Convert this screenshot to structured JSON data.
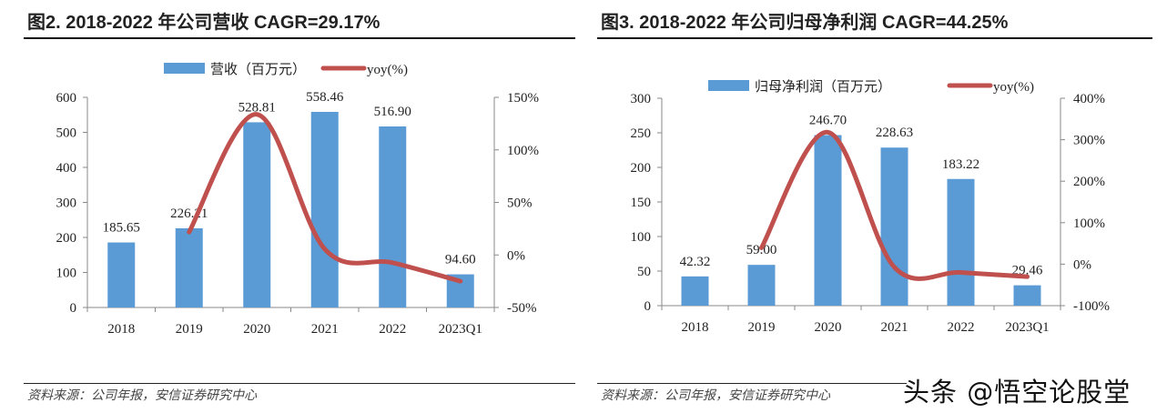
{
  "colors": {
    "bar": "#5b9bd5",
    "line": "#c0504d",
    "axis": "#888888"
  },
  "chart_data": [
    {
      "type": "bar+line",
      "title": "图2. 2018-2022 年公司营收 CAGR=29.17%",
      "categories": [
        "2018",
        "2019",
        "2020",
        "2021",
        "2022",
        "2023Q1"
      ],
      "series": [
        {
          "name": "营收（百万元）",
          "type": "bar",
          "axis": "left",
          "values": [
            185.65,
            226.21,
            528.81,
            558.46,
            516.9,
            94.6
          ],
          "labels": [
            "185.65",
            "226.21",
            "528.81",
            "558.46",
            "516.90",
            "94.60"
          ]
        },
        {
          "name": "yoy(%)",
          "type": "line",
          "axis": "right",
          "values": [
            null,
            21.8,
            133.8,
            5.6,
            -7.4,
            -25
          ]
        }
      ],
      "ylim": [
        0,
        600
      ],
      "yticks": [
        "0",
        "100",
        "200",
        "300",
        "400",
        "500",
        "600"
      ],
      "y2lim": [
        -50,
        150
      ],
      "y2ticks": [
        "-50%",
        "0%",
        "50%",
        "100%",
        "150%"
      ],
      "legend": "top",
      "grid": false,
      "source": "资料来源：公司年报，安信证券研究中心"
    },
    {
      "type": "bar+line",
      "title": "图3. 2018-2022 年公司归母净利润 CAGR=44.25%",
      "categories": [
        "2018",
        "2019",
        "2020",
        "2021",
        "2022",
        "2023Q1"
      ],
      "series": [
        {
          "name": "归母净利润（百万元）",
          "type": "bar",
          "axis": "left",
          "values": [
            42.32,
            59.0,
            246.7,
            228.63,
            183.22,
            29.46
          ],
          "labels": [
            "42.32",
            "59.00",
            "246.70",
            "228.63",
            "183.22",
            "29.46"
          ]
        },
        {
          "name": "yoy(%)",
          "type": "line",
          "axis": "right",
          "values": [
            null,
            39.4,
            318.1,
            -7.3,
            -19.9,
            -30
          ]
        }
      ],
      "ylim": [
        0,
        300
      ],
      "yticks": [
        "0",
        "50",
        "100",
        "150",
        "200",
        "250",
        "300"
      ],
      "y2lim": [
        -100,
        400
      ],
      "y2ticks": [
        "-100%",
        "0%",
        "100%",
        "200%",
        "300%",
        "400%"
      ],
      "legend": "top",
      "grid": false,
      "source": "资料来源：公司年报，安信证券研究中心"
    }
  ],
  "watermark": "头条 @悟空论股堂"
}
